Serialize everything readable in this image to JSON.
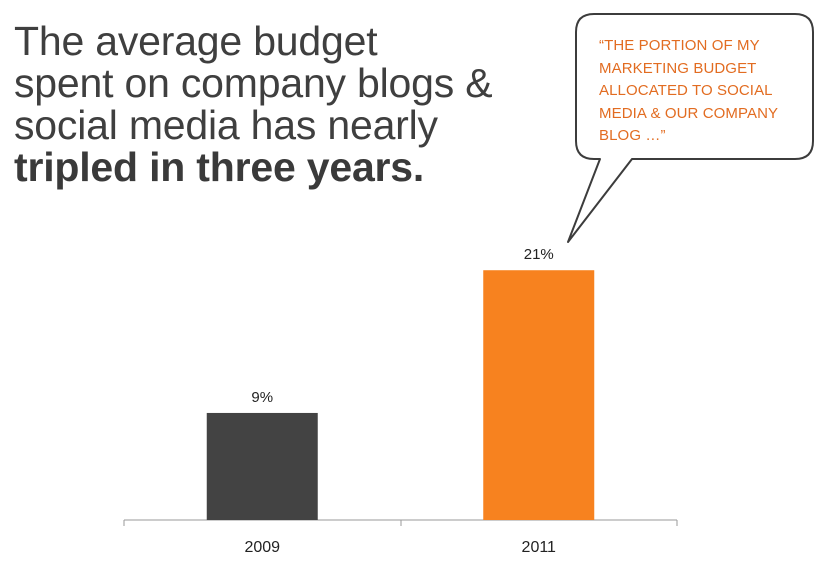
{
  "headline": {
    "line1": "The average budget",
    "line2": "spent on company blogs &",
    "line3": "social media has nearly",
    "emphasis": "tripled in three years."
  },
  "callout": {
    "quote": "“THE PORTION OF MY MARKETING BUDGET ALLOCATED TO SOCIAL MEDIA & OUR COMPANY BLOG …”"
  },
  "colors": {
    "bar_2009": "#434343",
    "bar_2011": "#f7821f",
    "quote_text": "#e26c21",
    "headline_text": "#3f3f3f",
    "axis": "#9a9a9a"
  },
  "chart_data": {
    "type": "bar",
    "title": "",
    "xlabel": "",
    "ylabel": "",
    "categories": [
      "2009",
      "2011"
    ],
    "values": [
      9,
      21
    ],
    "data_labels": [
      "9%",
      "21%"
    ],
    "ylim": [
      0,
      22.7
    ],
    "grid": false
  }
}
